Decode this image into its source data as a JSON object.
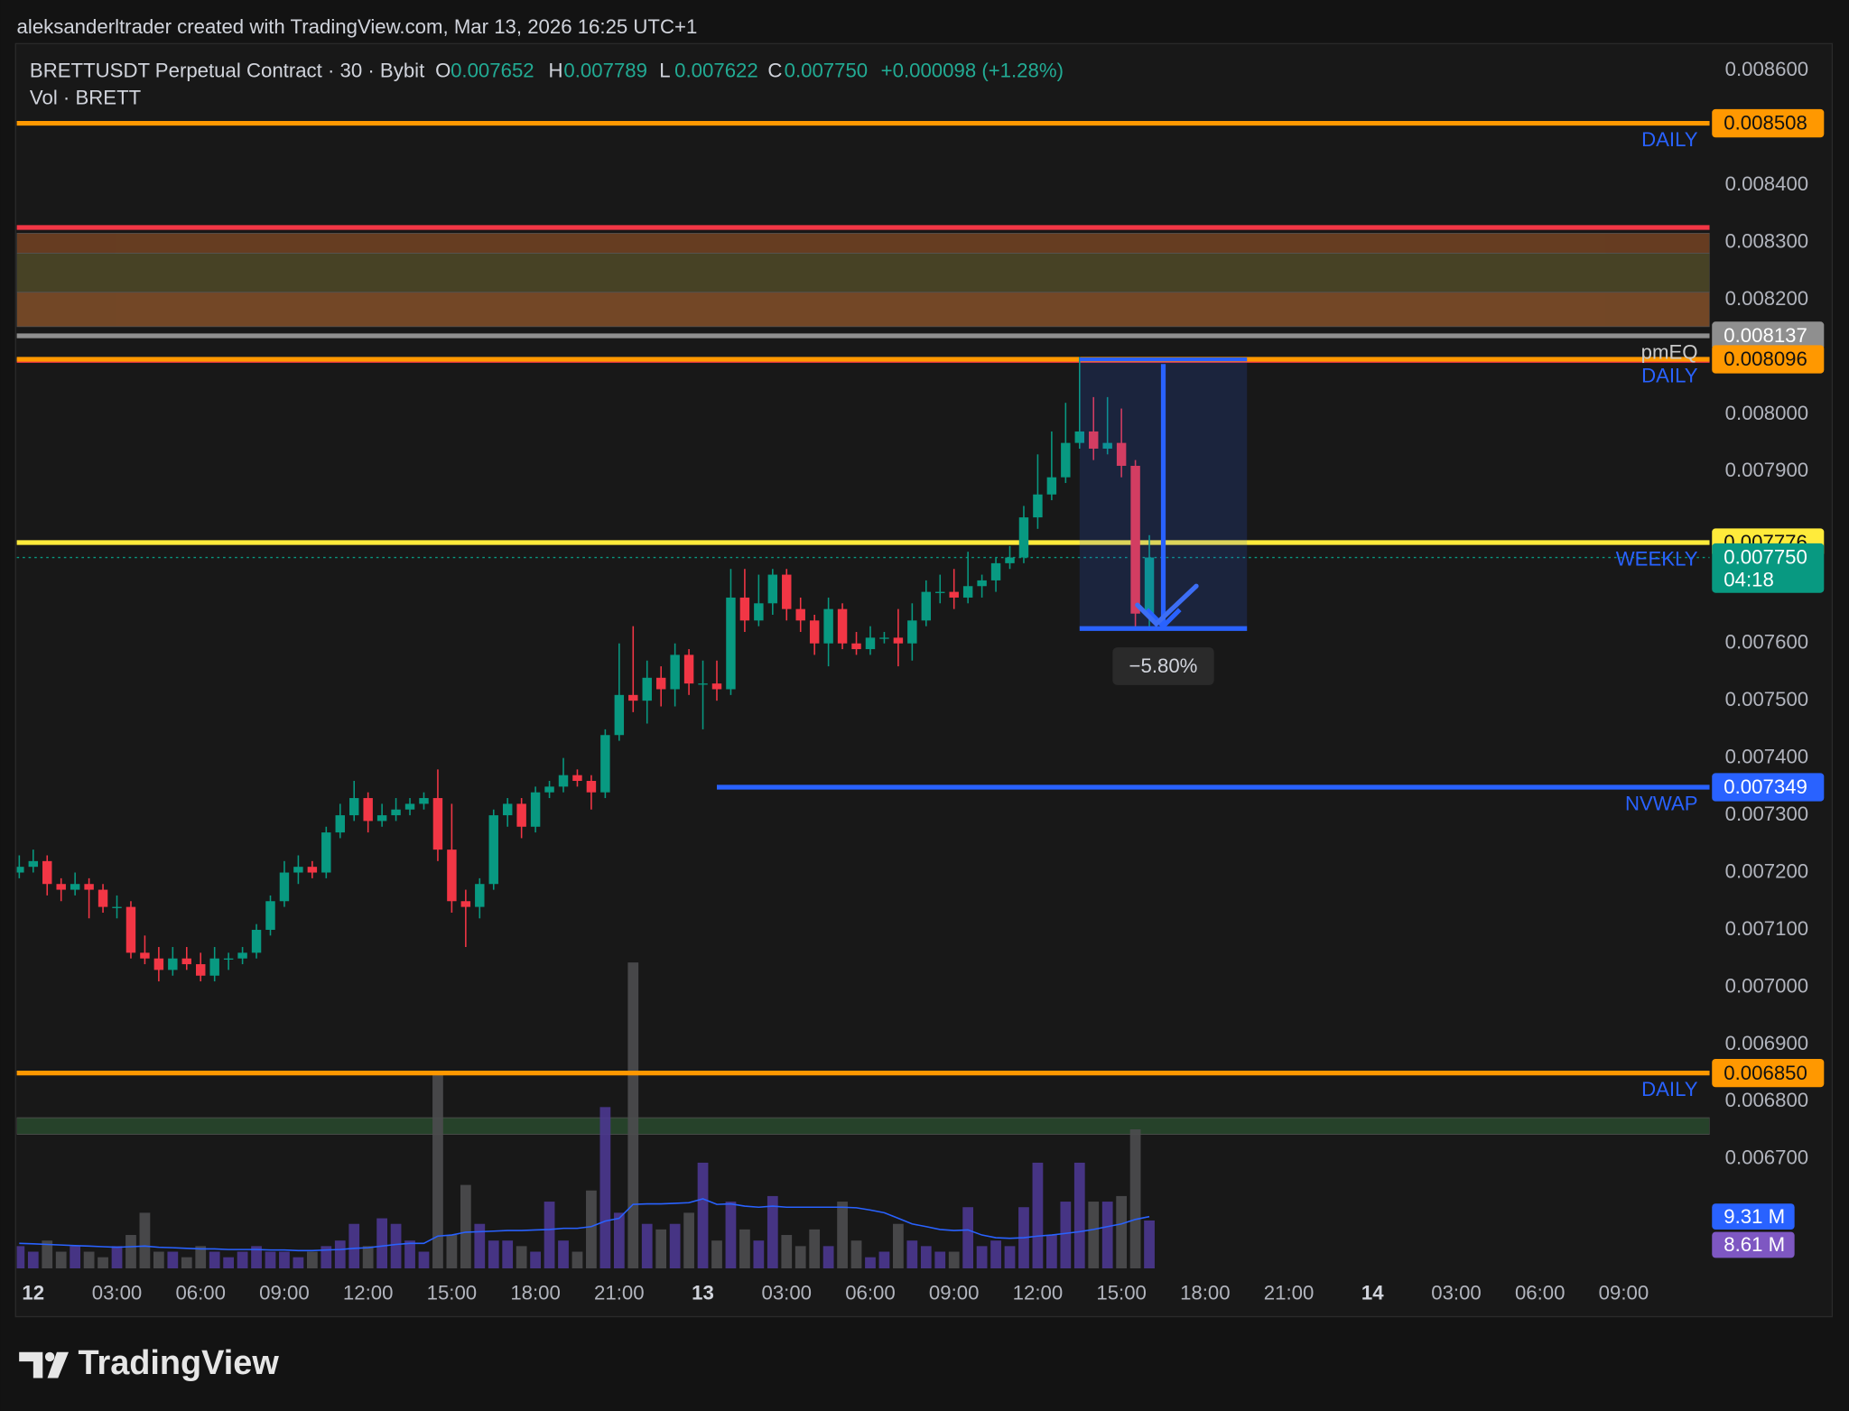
{
  "header": {
    "attribution": "aleksanderltrader created with TradingView.com, Mar 13, 2026 16:25 UTC+1",
    "symbol": "BRETTUSDT Perpetual Contract · 30 · Bybit",
    "o_key": "O",
    "open": "0.007652",
    "h_key": "H",
    "high": "0.007789",
    "l_key": "L",
    "low": "0.007622",
    "c_key": "C",
    "close": "0.007750",
    "change": "+0.000098 (+1.28%)",
    "volume_title": "Vol · BRETT"
  },
  "footer": {
    "brand": "TradingView"
  },
  "chart_data": {
    "type": "candlestick",
    "xlim": [
      -0.59,
      60.08
    ],
    "ylim": [
      0.006509,
      0.008645
    ],
    "vol_ylim": [
      0,
      220
    ],
    "grid": false,
    "up_color": "#089981",
    "down_color": "#f23645",
    "vol_up_color": "#4b3790",
    "vol_down_color": "#4d4d4f",
    "vol_ma_color": "#2962ff",
    "xticks": [
      {
        "value": 0,
        "label": "12"
      },
      {
        "value": 3,
        "label": "03:00"
      },
      {
        "value": 6,
        "label": "06:00"
      },
      {
        "value": 9,
        "label": "09:00"
      },
      {
        "value": 12,
        "label": "12:00"
      },
      {
        "value": 15,
        "label": "15:00"
      },
      {
        "value": 18,
        "label": "18:00"
      },
      {
        "value": 21,
        "label": "21:00"
      },
      {
        "value": 24,
        "label": "13"
      },
      {
        "value": 27,
        "label": "03:00"
      },
      {
        "value": 30,
        "label": "06:00"
      },
      {
        "value": 33,
        "label": "09:00"
      },
      {
        "value": 36,
        "label": "12:00"
      },
      {
        "value": 39,
        "label": "15:00"
      },
      {
        "value": 42,
        "label": "18:00"
      },
      {
        "value": 45,
        "label": "21:00"
      },
      {
        "value": 48,
        "label": "14"
      },
      {
        "value": 51,
        "label": "03:00"
      },
      {
        "value": 54,
        "label": "06:00"
      },
      {
        "value": 57,
        "label": "09:00"
      }
    ],
    "yticks": [
      {
        "value": 0.0086,
        "label": "0.008600"
      },
      {
        "value": 0.0084,
        "label": "0.008400"
      },
      {
        "value": 0.0083,
        "label": "0.008300"
      },
      {
        "value": 0.0082,
        "label": "0.008200"
      },
      {
        "value": 0.008,
        "label": "0.008000"
      },
      {
        "value": 0.0079,
        "label": "0.007900"
      },
      {
        "value": 0.0076,
        "label": "0.007600"
      },
      {
        "value": 0.0075,
        "label": "0.007500"
      },
      {
        "value": 0.0074,
        "label": "0.007400"
      },
      {
        "value": 0.0073,
        "label": "0.007300"
      },
      {
        "value": 0.0072,
        "label": "0.007200"
      },
      {
        "value": 0.0071,
        "label": "0.007100"
      },
      {
        "value": 0.007,
        "label": "0.007000"
      },
      {
        "value": 0.0069,
        "label": "0.006900"
      },
      {
        "value": 0.0068,
        "label": "0.006800"
      },
      {
        "value": 0.0067,
        "label": "0.006700"
      }
    ],
    "x": [
      -0.5,
      0,
      0.5,
      1,
      1.5,
      2,
      2.5,
      3,
      3.5,
      4,
      4.5,
      5,
      5.5,
      6,
      6.5,
      7,
      7.5,
      8,
      8.5,
      9,
      9.5,
      10,
      10.5,
      11,
      11.5,
      12,
      12.5,
      13,
      13.5,
      14,
      14.5,
      15,
      15.5,
      16,
      16.5,
      17,
      17.5,
      18,
      18.5,
      19,
      19.5,
      20,
      20.5,
      21,
      21.5,
      22,
      22.5,
      23,
      23.5,
      24,
      24.5,
      25,
      25.5,
      26,
      26.5,
      27,
      27.5,
      28,
      28.5,
      29,
      29.5,
      30,
      30.5,
      31,
      31.5,
      32,
      32.5,
      33,
      33.5,
      34,
      34.5,
      35,
      35.5,
      36,
      36.5,
      37,
      37.5,
      38,
      38.5,
      39,
      39.5,
      40
    ],
    "ohlc": [
      [
        0.0072,
        0.00723,
        0.00719,
        0.00721
      ],
      [
        0.00721,
        0.00724,
        0.0072,
        0.00722
      ],
      [
        0.00722,
        0.00723,
        0.00716,
        0.00718
      ],
      [
        0.00718,
        0.00719,
        0.00715,
        0.00717
      ],
      [
        0.00717,
        0.0072,
        0.00716,
        0.00718
      ],
      [
        0.00718,
        0.00719,
        0.00712,
        0.00717
      ],
      [
        0.00717,
        0.00718,
        0.00713,
        0.00714
      ],
      [
        0.00714,
        0.00716,
        0.00712,
        0.00714
      ],
      [
        0.00714,
        0.00715,
        0.00705,
        0.00706
      ],
      [
        0.00706,
        0.00709,
        0.00704,
        0.00705
      ],
      [
        0.00705,
        0.00707,
        0.00701,
        0.00703
      ],
      [
        0.00703,
        0.00707,
        0.00702,
        0.00705
      ],
      [
        0.00705,
        0.00707,
        0.00703,
        0.00704
      ],
      [
        0.00704,
        0.00706,
        0.00701,
        0.00702
      ],
      [
        0.00702,
        0.00707,
        0.00701,
        0.00705
      ],
      [
        0.00705,
        0.00706,
        0.00703,
        0.00705
      ],
      [
        0.00705,
        0.00707,
        0.00704,
        0.00706
      ],
      [
        0.00706,
        0.00711,
        0.00705,
        0.0071
      ],
      [
        0.0071,
        0.00716,
        0.00709,
        0.00715
      ],
      [
        0.00715,
        0.00722,
        0.00714,
        0.0072
      ],
      [
        0.0072,
        0.00723,
        0.00718,
        0.00721
      ],
      [
        0.00721,
        0.00722,
        0.00719,
        0.0072
      ],
      [
        0.0072,
        0.00728,
        0.00719,
        0.00727
      ],
      [
        0.00727,
        0.00732,
        0.00726,
        0.0073
      ],
      [
        0.0073,
        0.00736,
        0.00729,
        0.00733
      ],
      [
        0.00733,
        0.00734,
        0.00727,
        0.00729
      ],
      [
        0.00729,
        0.00732,
        0.00728,
        0.0073
      ],
      [
        0.0073,
        0.00733,
        0.00729,
        0.00731
      ],
      [
        0.00731,
        0.00733,
        0.0073,
        0.00732
      ],
      [
        0.00732,
        0.00734,
        0.00731,
        0.00733
      ],
      [
        0.00733,
        0.00738,
        0.00722,
        0.00724
      ],
      [
        0.00724,
        0.00732,
        0.00713,
        0.00715
      ],
      [
        0.00715,
        0.00717,
        0.00707,
        0.00714
      ],
      [
        0.00714,
        0.00719,
        0.00712,
        0.00718
      ],
      [
        0.00718,
        0.00731,
        0.00717,
        0.0073
      ],
      [
        0.0073,
        0.00733,
        0.00728,
        0.00732
      ],
      [
        0.00732,
        0.00733,
        0.00726,
        0.00728
      ],
      [
        0.00728,
        0.00735,
        0.00727,
        0.00734
      ],
      [
        0.00734,
        0.00736,
        0.00733,
        0.00735
      ],
      [
        0.00735,
        0.0074,
        0.00734,
        0.00737
      ],
      [
        0.00737,
        0.00738,
        0.00735,
        0.00736
      ],
      [
        0.00736,
        0.00737,
        0.00731,
        0.00734
      ],
      [
        0.00734,
        0.00745,
        0.00733,
        0.00744
      ],
      [
        0.00744,
        0.0076,
        0.00743,
        0.00751
      ],
      [
        0.00751,
        0.00763,
        0.00748,
        0.0075
      ],
      [
        0.0075,
        0.00757,
        0.00746,
        0.00754
      ],
      [
        0.00754,
        0.00756,
        0.00749,
        0.00752
      ],
      [
        0.00752,
        0.0076,
        0.00749,
        0.00758
      ],
      [
        0.00758,
        0.00759,
        0.00751,
        0.00753
      ],
      [
        0.00753,
        0.00757,
        0.00745,
        0.00753
      ],
      [
        0.00753,
        0.00757,
        0.0075,
        0.00752
      ],
      [
        0.00752,
        0.00773,
        0.00751,
        0.00768
      ],
      [
        0.00768,
        0.00773,
        0.00762,
        0.00764
      ],
      [
        0.00764,
        0.00772,
        0.00763,
        0.00767
      ],
      [
        0.00767,
        0.00773,
        0.00765,
        0.00772
      ],
      [
        0.00772,
        0.00773,
        0.00764,
        0.00766
      ],
      [
        0.00766,
        0.00768,
        0.00762,
        0.00764
      ],
      [
        0.00764,
        0.00765,
        0.00758,
        0.0076
      ],
      [
        0.0076,
        0.00768,
        0.00756,
        0.00766
      ],
      [
        0.00766,
        0.00767,
        0.00759,
        0.0076
      ],
      [
        0.0076,
        0.00762,
        0.00758,
        0.00759
      ],
      [
        0.00759,
        0.00763,
        0.00758,
        0.00761
      ],
      [
        0.00761,
        0.00762,
        0.0076,
        0.00761
      ],
      [
        0.00761,
        0.00766,
        0.00756,
        0.0076
      ],
      [
        0.0076,
        0.00767,
        0.00757,
        0.00764
      ],
      [
        0.00764,
        0.00771,
        0.00763,
        0.00769
      ],
      [
        0.00769,
        0.00772,
        0.00767,
        0.00769
      ],
      [
        0.00769,
        0.00773,
        0.00766,
        0.00768
      ],
      [
        0.00768,
        0.00776,
        0.00767,
        0.0077
      ],
      [
        0.0077,
        0.00772,
        0.00768,
        0.00771
      ],
      [
        0.00771,
        0.00775,
        0.00769,
        0.00774
      ],
      [
        0.00774,
        0.00777,
        0.00773,
        0.00775
      ],
      [
        0.00775,
        0.00784,
        0.00774,
        0.00782
      ],
      [
        0.00782,
        0.00793,
        0.0078,
        0.00786
      ],
      [
        0.00786,
        0.00797,
        0.00785,
        0.00789
      ],
      [
        0.00789,
        0.00802,
        0.00788,
        0.00795
      ],
      [
        0.00795,
        0.0081,
        0.00794,
        0.00797
      ],
      [
        0.00797,
        0.00803,
        0.00792,
        0.00794
      ],
      [
        0.00794,
        0.00803,
        0.00793,
        0.00795
      ],
      [
        0.00795,
        0.00801,
        0.00789,
        0.00791
      ],
      [
        0.00791,
        0.00792,
        0.007628,
        0.007652
      ],
      [
        0.007652,
        0.007789,
        0.007622,
        0.00775
      ]
    ],
    "volume": [
      4,
      3,
      5,
      3,
      4,
      3,
      2,
      4,
      6,
      10,
      3,
      3,
      2,
      4,
      3,
      2,
      3,
      4,
      3,
      3,
      2,
      3,
      4,
      5,
      8,
      4,
      9,
      8,
      5,
      3,
      35,
      6,
      15,
      8,
      5,
      5,
      4,
      3,
      12,
      5,
      3,
      14,
      29,
      10,
      55,
      8,
      7,
      8,
      10,
      19,
      5,
      12,
      7,
      5,
      13,
      6,
      4,
      7,
      4,
      12,
      5,
      2,
      3,
      8,
      5,
      4,
      3,
      3,
      11,
      4,
      5,
      4,
      11,
      19,
      6,
      12,
      19,
      12,
      12,
      13,
      25,
      8.61
    ],
    "volume_tag": "8.61 M",
    "volume_ma": [
      4.5,
      4.4,
      4.3,
      4.2,
      4.1,
      4.0,
      3.9,
      3.8,
      3.9,
      4.0,
      3.8,
      3.7,
      3.6,
      3.5,
      3.5,
      3.4,
      3.4,
      3.4,
      3.3,
      3.3,
      3.2,
      3.2,
      3.3,
      3.4,
      3.6,
      3.7,
      4.0,
      4.3,
      4.5,
      4.5,
      5.8,
      6.0,
      6.5,
      6.6,
      6.7,
      6.8,
      6.8,
      6.9,
      7.0,
      7.2,
      7.2,
      7.5,
      8.5,
      9.0,
      11.5,
      11.6,
      11.6,
      11.7,
      11.8,
      12.5,
      11.5,
      11.6,
      11.2,
      11.0,
      11.2,
      11.0,
      11.0,
      11.0,
      11.0,
      11.0,
      10.9,
      10.5,
      10.0,
      9.0,
      8.0,
      7.5,
      7.0,
      6.8,
      6.9,
      6.0,
      5.5,
      5.4,
      5.5,
      5.8,
      6.0,
      6.3,
      6.6,
      7.0,
      7.5,
      8.0,
      8.8,
      9.31
    ],
    "volume_ma_tag": "9.31 M",
    "zones": [
      {
        "from": 0.008316,
        "to": 0.008281,
        "color": "#6b3f22"
      },
      {
        "from": 0.008281,
        "to": 0.008213,
        "color": "#4a4526"
      },
      {
        "from": 0.008213,
        "to": 0.008153,
        "color": "#784a27"
      },
      {
        "from": 0.006772,
        "to": 0.006743,
        "color": "#27452c"
      }
    ],
    "levels": [
      {
        "value": 0.008508,
        "color": "#ff9800",
        "tag": "DAILY",
        "box_text": "#111111"
      },
      {
        "value": 0.008326,
        "color": "#f23645"
      },
      {
        "value": 0.008137,
        "color": "#8f8f8f",
        "tag": "pmEQ",
        "box_text": "#ffffff",
        "tag_color": "#c9c9c9"
      },
      {
        "value": 0.008094,
        "color": "#f23645"
      },
      {
        "value": 0.008096,
        "color": "#ff9800",
        "tag": "DAILY",
        "box_text": "#111111"
      },
      {
        "value": 0.007776,
        "color": "#ffeb3b",
        "tag": "WEEKLY",
        "box_text": "#111111"
      },
      {
        "value": 0.007349,
        "color": "#2962ff",
        "tag": "NVWAP",
        "box_text": "#ffffff",
        "start": 24.5
      },
      {
        "value": 0.00685,
        "value_label": "0.006850",
        "color": "#ff9800",
        "tag": "DAILY",
        "box_text": "#111111"
      }
    ],
    "last_price": {
      "value": 0.00775,
      "value_label": "0.007750",
      "countdown": "04:18",
      "color": "#089981"
    },
    "measure": {
      "x_start": 37.5,
      "x_end": 43.5,
      "top": 0.008096,
      "bottom": 0.007626,
      "label": "−5.80%"
    }
  }
}
